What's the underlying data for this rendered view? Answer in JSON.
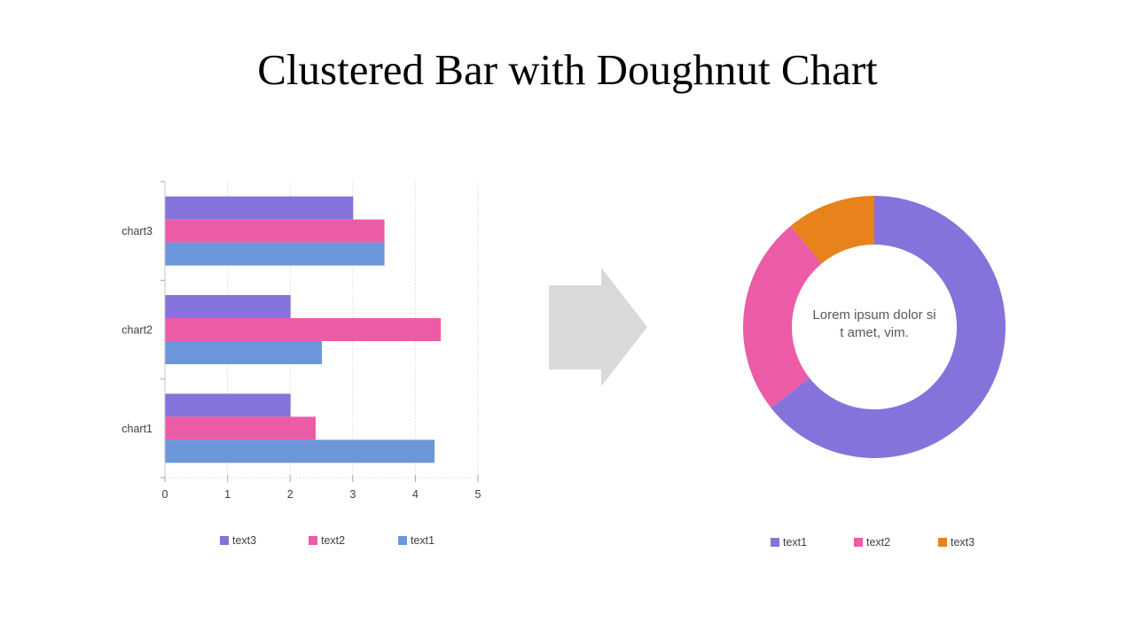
{
  "title": "Clustered Bar with Doughnut Chart",
  "colors": {
    "background": "#FFFFFF",
    "axis_line": "#C6C6C6",
    "axis_tick": "#A6A6A6",
    "gridline": "#D9D9D9",
    "label_text": "#404040",
    "center_text": "#595959",
    "series_purple": "#8672DB",
    "series_pink": "#EC5BA6",
    "series_blue": "#6B96D9",
    "series_orange": "#E8821B"
  },
  "arrow": {
    "direction": "right",
    "color": "#D9D9D9"
  },
  "chart_data": [
    {
      "type": "bar",
      "orientation": "horizontal",
      "title": "",
      "categories": [
        "chart3",
        "chart2",
        "chart1"
      ],
      "series": [
        {
          "name": "text3",
          "color": "#8672DB",
          "values": [
            3.0,
            2.0,
            2.0
          ]
        },
        {
          "name": "text2",
          "color": "#EC5BA6",
          "values": [
            3.5,
            4.4,
            2.4
          ]
        },
        {
          "name": "text1",
          "color": "#6B96D9",
          "values": [
            3.5,
            2.5,
            4.3
          ]
        }
      ],
      "xlim": [
        0,
        5
      ],
      "xticks": [
        0,
        1,
        2,
        3,
        4,
        5
      ],
      "grid": "vertical-dotted",
      "legend_position": "bottom",
      "legend_order": [
        "text3",
        "text2",
        "text1"
      ]
    },
    {
      "type": "doughnut",
      "segments": [
        {
          "name": "text1",
          "color": "#8672DB",
          "pct": 64.4
        },
        {
          "name": "text2",
          "color": "#EC5BA6",
          "pct": 24.6
        },
        {
          "name": "text3",
          "color": "#E8821B",
          "pct": 11.0
        }
      ],
      "start_angle_deg": 0,
      "center_text": "Lorem ipsum dolor si t amet, vim.",
      "center_lines": [
        "Lorem ipsum dolor si",
        "t amet, vim."
      ],
      "legend_position": "bottom",
      "legend_order": [
        "text1",
        "text2",
        "text3"
      ]
    }
  ]
}
